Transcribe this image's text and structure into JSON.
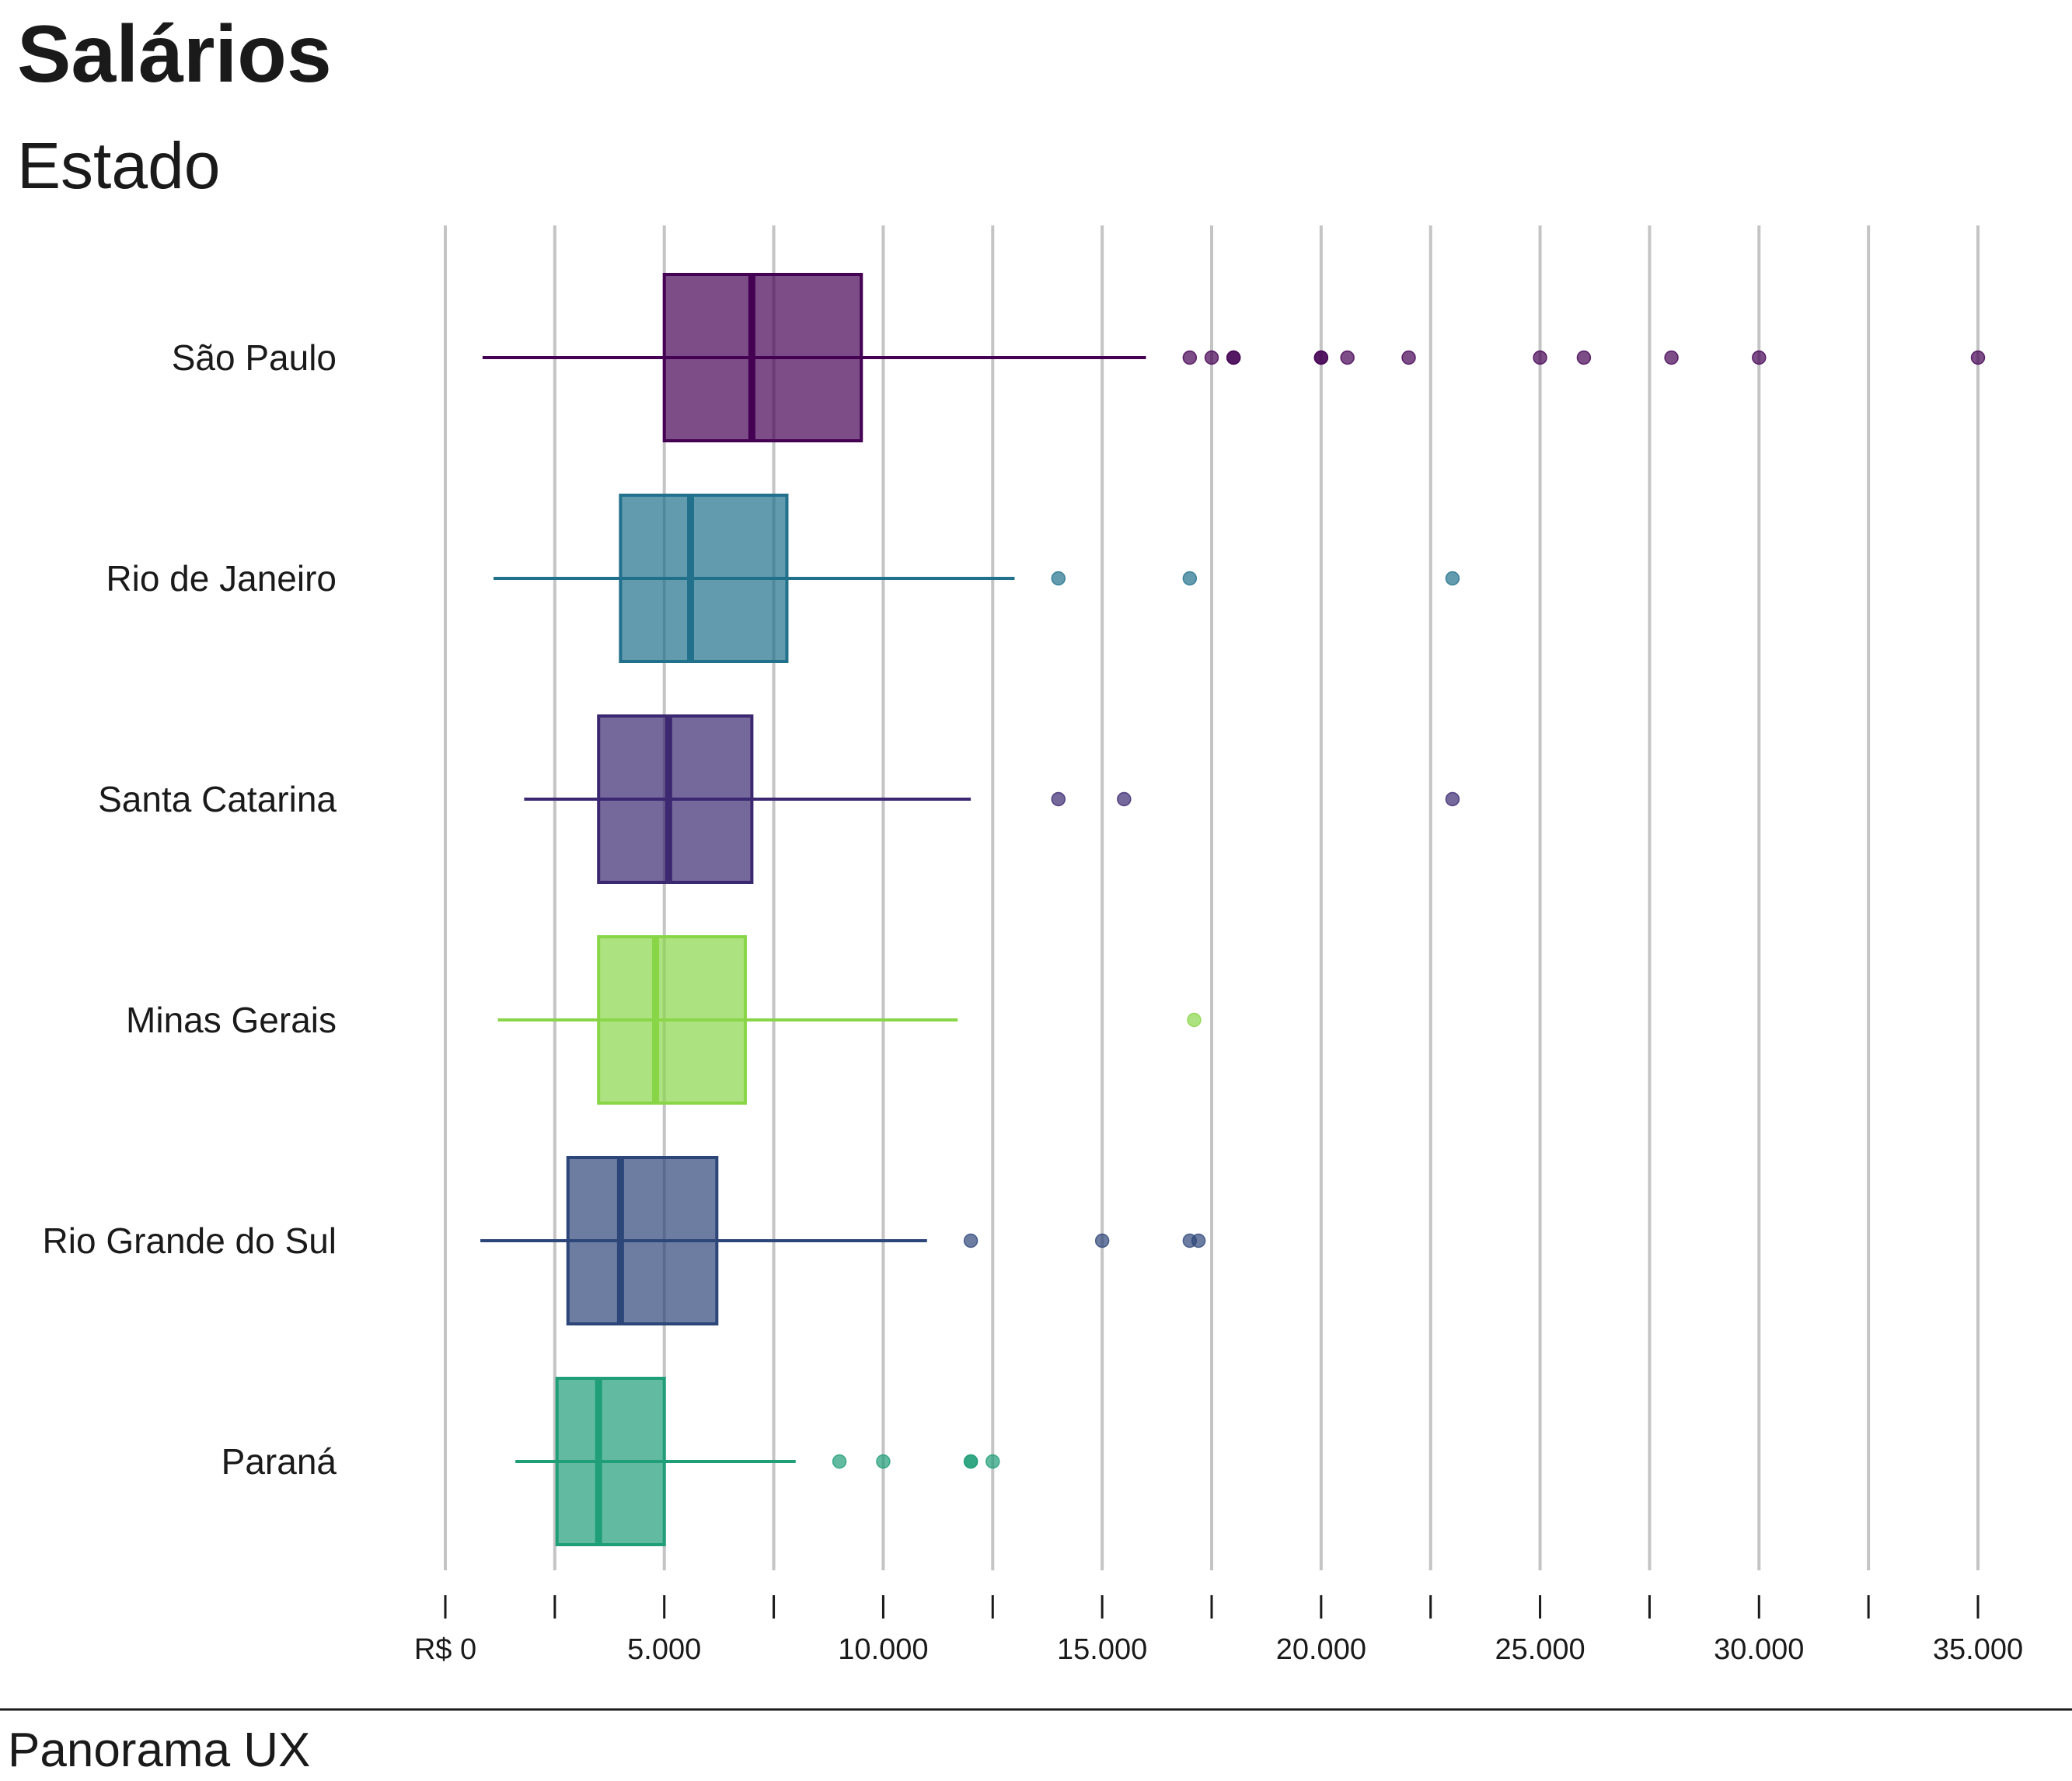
{
  "chart_data": {
    "type": "boxplot",
    "orientation": "horizontal",
    "title": "Salários",
    "subtitle": "Estado",
    "caption": "Panorama UX",
    "xlim": [
      0,
      35000
    ],
    "ticks": [
      {
        "value": 0,
        "label": "R$ 0"
      },
      {
        "value": 5000,
        "label": "5.000"
      },
      {
        "value": 10000,
        "label": "10.000"
      },
      {
        "value": 15000,
        "label": "15.000"
      },
      {
        "value": 20000,
        "label": "20.000"
      },
      {
        "value": 25000,
        "label": "25.000"
      },
      {
        "value": 30000,
        "label": "30.000"
      },
      {
        "value": 35000,
        "label": "35.000"
      }
    ],
    "minor_ticks": [
      2500,
      7500,
      12500,
      17500,
      22500,
      27500,
      32500
    ],
    "grid": true,
    "legend": "none",
    "series": [
      {
        "category": "São Paulo",
        "color": "#440154",
        "whisker_low": 850,
        "q1": 5000,
        "median": 7000,
        "q3": 9500,
        "whisker_high": 16000,
        "outliers": [
          17000,
          17500,
          18000,
          18000,
          20000,
          20000,
          20600,
          22000,
          25000,
          26000,
          28000,
          30000,
          35000
        ]
      },
      {
        "category": "Rio de Janeiro",
        "color": "#21708C",
        "whisker_low": 1100,
        "q1": 4000,
        "median": 5600,
        "q3": 7800,
        "whisker_high": 13000,
        "outliers": [
          14000,
          17000,
          23000
        ]
      },
      {
        "category": "Santa Catarina",
        "color": "#3B2870",
        "whisker_low": 1800,
        "q1": 3500,
        "median": 5100,
        "q3": 7000,
        "whisker_high": 12000,
        "outliers": [
          14000,
          15500,
          23000
        ]
      },
      {
        "category": "Minas Gerais",
        "color": "#89D548",
        "whisker_low": 1200,
        "q1": 3500,
        "median": 4800,
        "q3": 6850,
        "whisker_high": 11700,
        "outliers": [
          17100
        ]
      },
      {
        "category": "Rio Grande do Sul",
        "color": "#2D4679",
        "whisker_low": 800,
        "q1": 2800,
        "median": 4000,
        "q3": 6200,
        "whisker_high": 11000,
        "outliers": [
          12000,
          15000,
          17000,
          17200
        ]
      },
      {
        "category": "Paraná",
        "color": "#1F9E77",
        "whisker_low": 1600,
        "q1": 2550,
        "median": 3500,
        "q3": 5000,
        "whisker_high": 8000,
        "outliers": [
          9000,
          10000,
          12000,
          12000,
          12500
        ]
      }
    ]
  }
}
